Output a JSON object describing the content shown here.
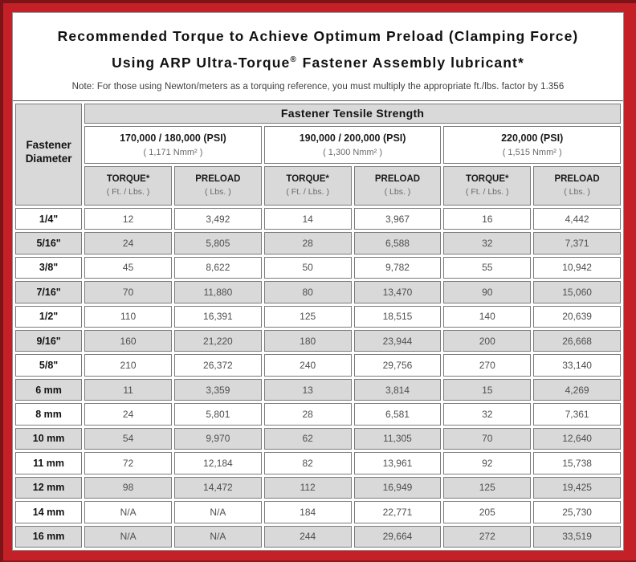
{
  "colors": {
    "frame_red": "#c32127",
    "frame_dark_edge": "#7a1419",
    "cell_gray": "#d9d9d9",
    "cell_border": "#7b7b7b",
    "value_text": "#4f4f4f"
  },
  "title": {
    "line1": "Recommended Torque to Achieve Optimum Preload (Clamping Force)",
    "line2_before": "Using ARP Ultra-Torque",
    "line2_reg_mark": "®",
    "line2_after": "Fastener Assembly lubricant*"
  },
  "note": "Note: For those using Newton/meters as a torquing reference, you must multiply the appropriate ft./lbs. factor by 1.356",
  "table": {
    "corner": {
      "line1": "Fastener",
      "line2": "Diameter"
    },
    "group_header": "Fastener Tensile Strength",
    "strength_levels": [
      {
        "psi": "170,000 / 180,000 (PSI)",
        "nmm": "( 1,171 Nmm² )"
      },
      {
        "psi": "190,000 / 200,000 (PSI)",
        "nmm": "( 1,300 Nmm² )"
      },
      {
        "psi": "220,000 (PSI)",
        "nmm": "( 1,515 Nmm² )"
      }
    ],
    "column_headers": [
      {
        "label": "TORQUE*",
        "sub": "( Ft. / Lbs. )"
      },
      {
        "label": "PRELOAD",
        "sub": "( Lbs. )"
      },
      {
        "label": "TORQUE*",
        "sub": "( Ft. / Lbs. )"
      },
      {
        "label": "PRELOAD",
        "sub": "( Lbs. )"
      },
      {
        "label": "TORQUE*",
        "sub": "( Ft. / Lbs. )"
      },
      {
        "label": "PRELOAD",
        "sub": "( Lbs. )"
      }
    ],
    "rows": [
      [
        "1/4\"",
        "12",
        "3,492",
        "14",
        "3,967",
        "16",
        "4,442"
      ],
      [
        "5/16\"",
        "24",
        "5,805",
        "28",
        "6,588",
        "32",
        "7,371"
      ],
      [
        "3/8\"",
        "45",
        "8,622",
        "50",
        "9,782",
        "55",
        "10,942"
      ],
      [
        "7/16\"",
        "70",
        "11,880",
        "80",
        "13,470",
        "90",
        "15,060"
      ],
      [
        "1/2\"",
        "110",
        "16,391",
        "125",
        "18,515",
        "140",
        "20,639"
      ],
      [
        "9/16\"",
        "160",
        "21,220",
        "180",
        "23,944",
        "200",
        "26,668"
      ],
      [
        "5/8\"",
        "210",
        "26,372",
        "240",
        "29,756",
        "270",
        "33,140"
      ],
      [
        "6 mm",
        "11",
        "3,359",
        "13",
        "3,814",
        "15",
        "4,269"
      ],
      [
        "8 mm",
        "24",
        "5,801",
        "28",
        "6,581",
        "32",
        "7,361"
      ],
      [
        "10 mm",
        "54",
        "9,970",
        "62",
        "11,305",
        "70",
        "12,640"
      ],
      [
        "11 mm",
        "72",
        "12,184",
        "82",
        "13,961",
        "92",
        "15,738"
      ],
      [
        "12 mm",
        "98",
        "14,472",
        "112",
        "16,949",
        "125",
        "19,425"
      ],
      [
        "14 mm",
        "N/A",
        "N/A",
        "184",
        "22,771",
        "205",
        "25,730"
      ],
      [
        "16 mm",
        "N/A",
        "N/A",
        "244",
        "29,664",
        "272",
        "33,519"
      ]
    ]
  }
}
